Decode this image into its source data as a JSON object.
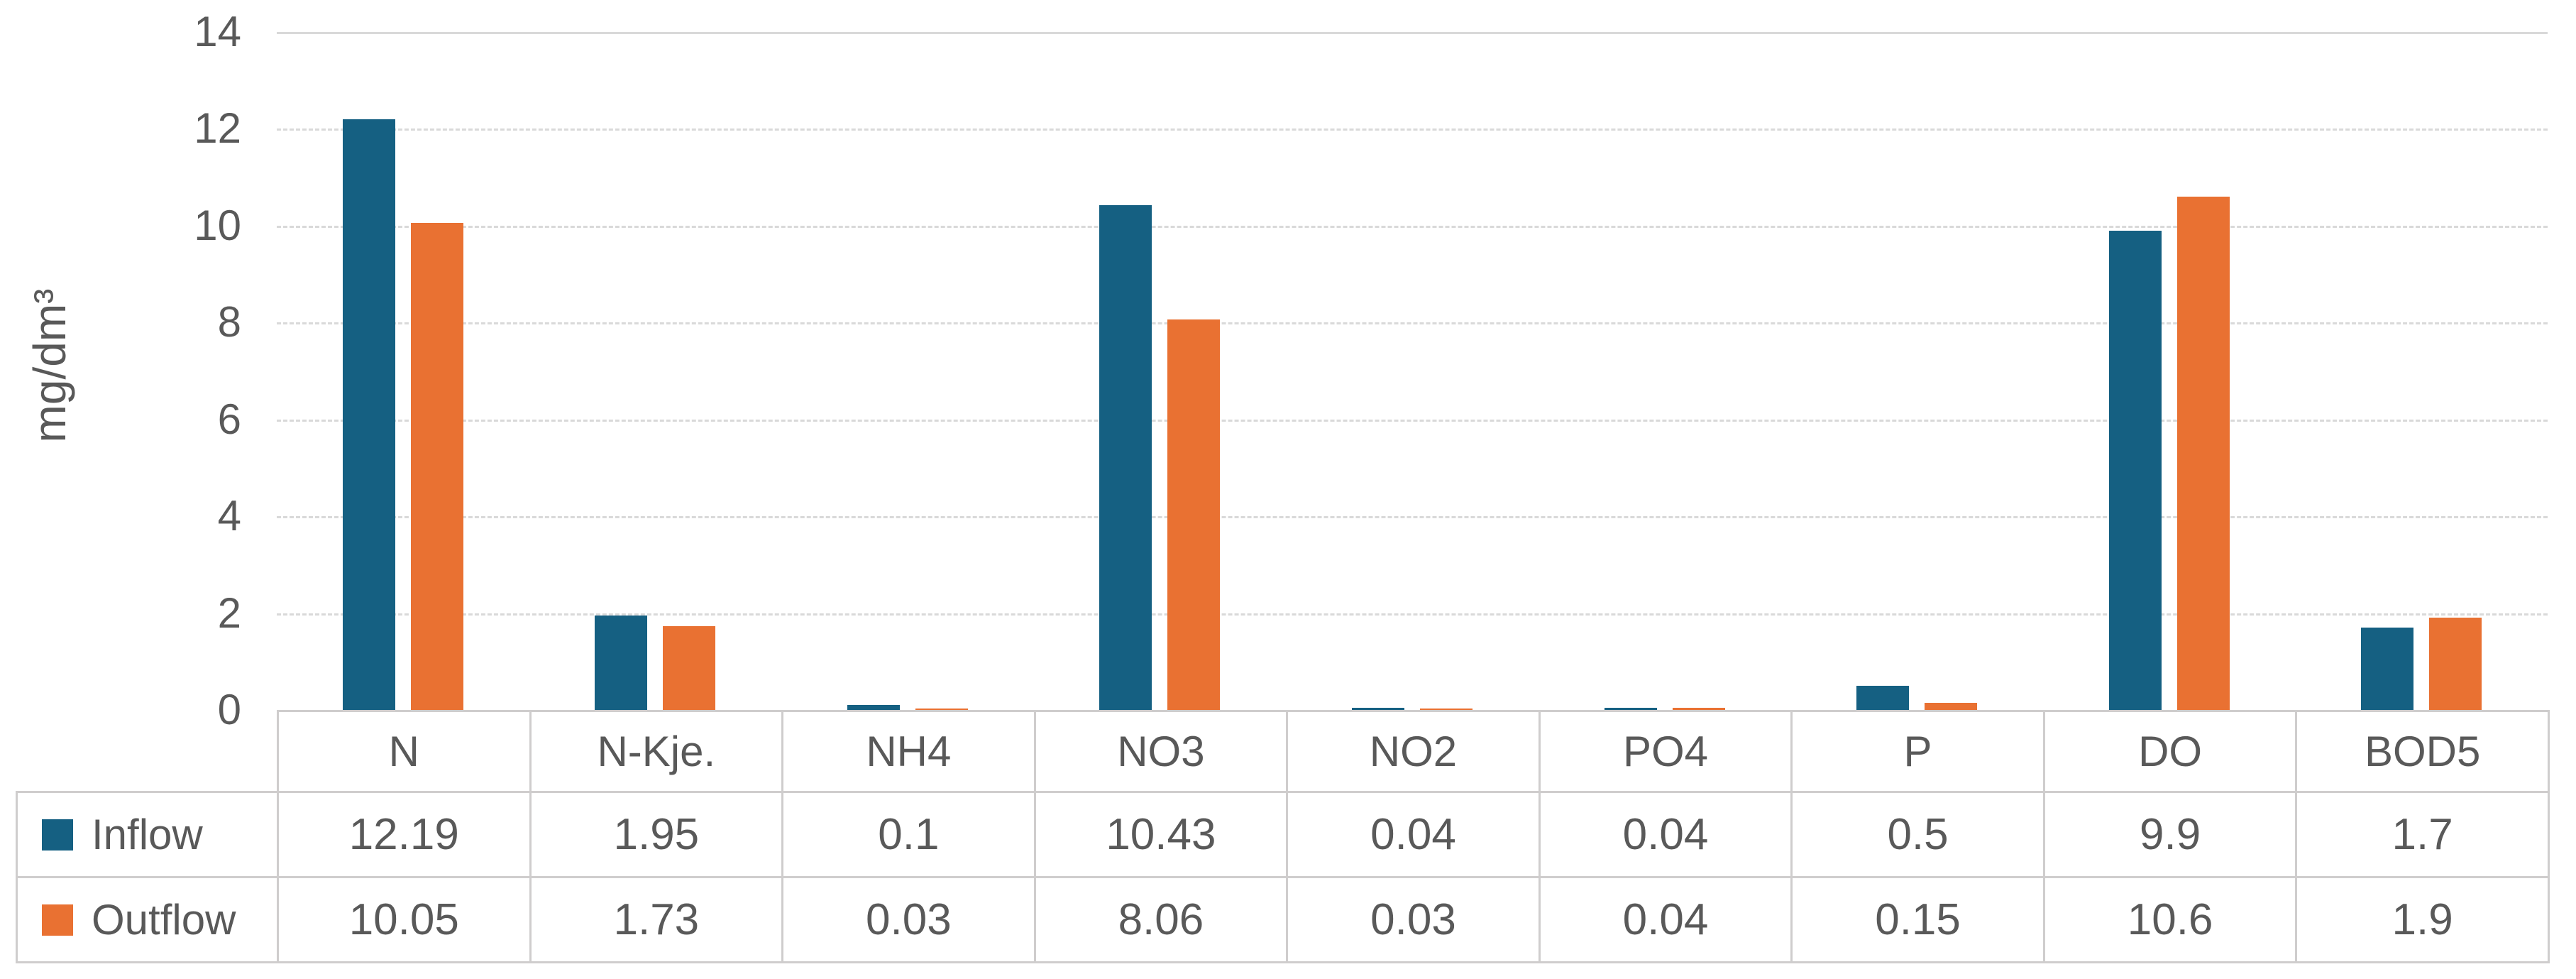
{
  "chart_data": {
    "type": "bar",
    "categories": [
      "N",
      "N-Kje.",
      "NH4",
      "NO3",
      "NO2",
      "PO4",
      "P",
      "DO",
      "BOD5"
    ],
    "series": [
      {
        "name": "Inflow",
        "color": "#156082",
        "values": [
          12.19,
          1.95,
          0.1,
          10.43,
          0.04,
          0.04,
          0.5,
          9.9,
          1.7
        ]
      },
      {
        "name": "Outflow",
        "color": "#E97132",
        "values": [
          10.05,
          1.73,
          0.03,
          8.06,
          0.03,
          0.04,
          0.15,
          10.6,
          1.9
        ]
      }
    ],
    "title": "",
    "xlabel": "",
    "ylabel": "mg/dm³",
    "ylim": [
      0,
      14
    ],
    "ytick_step": 2,
    "ytick_labels": [
      "0",
      "2",
      "4",
      "6",
      "8",
      "10",
      "12",
      "14"
    ],
    "grid": true,
    "gridline_style": "dashed",
    "legend_position": "table-left",
    "colors": {
      "inflow": "#156082",
      "outflow": "#E97132",
      "gridline": "#d9d9d9",
      "table_border": "#cfcdcd",
      "text": "#595959"
    }
  }
}
